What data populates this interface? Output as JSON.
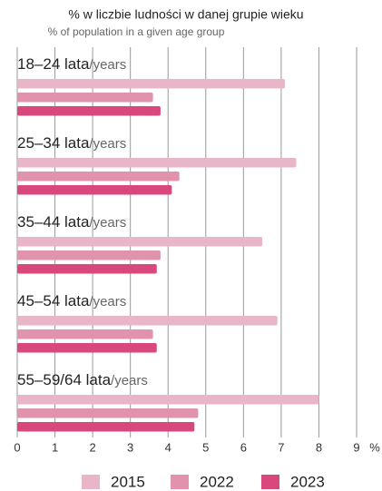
{
  "chart_data": {
    "type": "bar",
    "orientation": "horizontal",
    "title": "% w liczbie ludności w danej grupie wieku",
    "subtitle": "% of population in a given age group",
    "categories": [
      "18–24 lata/years",
      "25–34 lata/years",
      "35–44 lata/years",
      "45–54 lata/years",
      "55–59/64 lata/years"
    ],
    "series": [
      {
        "name": "2015",
        "color": "#e8b5c9",
        "values": [
          7.1,
          7.4,
          6.5,
          6.9,
          8.0
        ]
      },
      {
        "name": "2022",
        "color": "#e193ae",
        "values": [
          3.6,
          4.3,
          3.8,
          3.6,
          4.8
        ]
      },
      {
        "name": "2023",
        "color": "#d8487c",
        "values": [
          3.8,
          4.1,
          3.7,
          3.7,
          4.7
        ]
      }
    ],
    "xlim": [
      0,
      9
    ],
    "xticks": [
      0,
      1,
      2,
      3,
      4,
      5,
      6,
      7,
      8,
      9
    ],
    "x_unit": "%",
    "grid": true,
    "legend": "bottom"
  }
}
